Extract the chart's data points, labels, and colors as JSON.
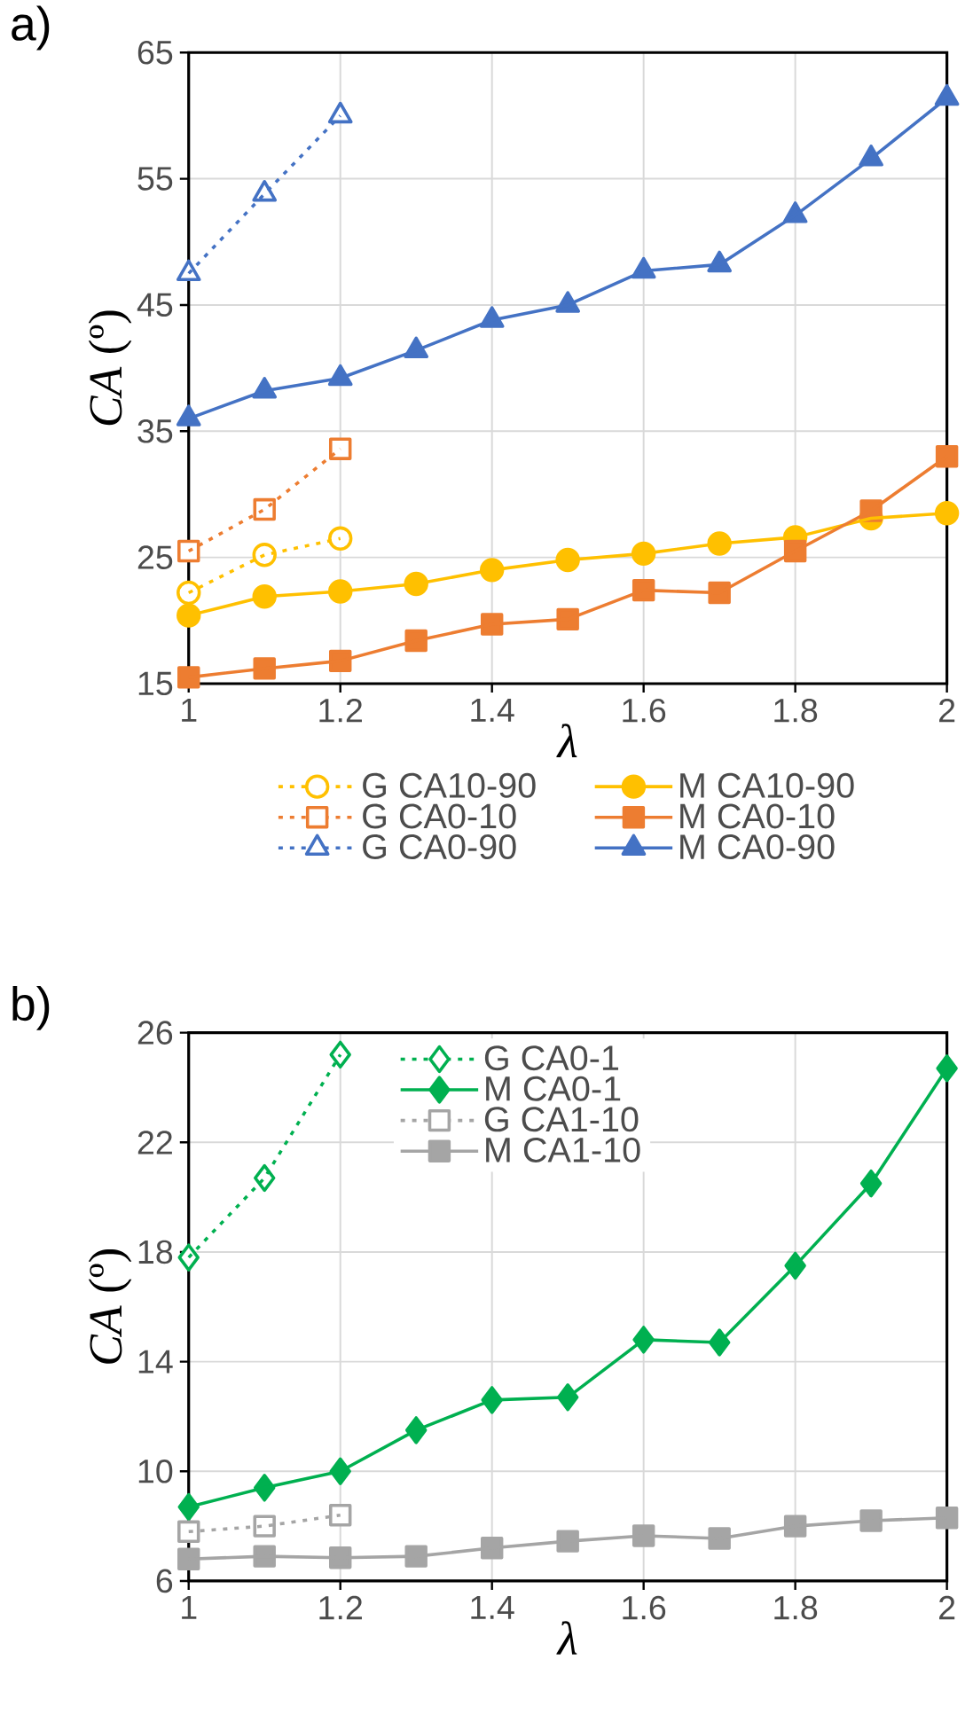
{
  "chart_data": [
    {
      "type": "line",
      "title": "a)",
      "xlabel": "λ",
      "ylabel": "*CA* (º)",
      "x": [
        1,
        1.1,
        1.2,
        1.3,
        1.4,
        1.5,
        1.6,
        1.7,
        1.8,
        1.9,
        2
      ],
      "xlim": [
        1,
        2
      ],
      "xticks": [
        1,
        1.2,
        1.4,
        1.6,
        1.8,
        2
      ],
      "ylim": [
        15,
        65
      ],
      "yticks": [
        15,
        25,
        35,
        45,
        55,
        65
      ],
      "grid": true,
      "legend": "bottom",
      "series": [
        {
          "name": "G CA10-90",
          "color": "#ffc000",
          "marker": "circle",
          "line_style": "dotted",
          "values": [
            22.2,
            25.2,
            26.5,
            null,
            null,
            null,
            null,
            null,
            null,
            null,
            null
          ]
        },
        {
          "name": "M CA10-90",
          "color": "#ffc000",
          "marker": "circle",
          "line_style": "solid",
          "values": [
            20.4,
            21.9,
            22.3,
            22.9,
            24.0,
            24.8,
            25.3,
            26.1,
            26.6,
            28.1,
            28.5
          ]
        },
        {
          "name": "G CA0-10",
          "color": "#ed7d31",
          "marker": "square",
          "line_style": "dotted",
          "values": [
            25.5,
            28.8,
            33.6,
            null,
            null,
            null,
            null,
            null,
            null,
            null,
            null
          ]
        },
        {
          "name": "M CA0-10",
          "color": "#ed7d31",
          "marker": "square",
          "line_style": "solid",
          "values": [
            15.5,
            16.2,
            16.8,
            18.4,
            19.7,
            20.1,
            22.4,
            22.2,
            25.5,
            28.7,
            33.0
          ]
        },
        {
          "name": "G CA0-90",
          "color": "#4472c4",
          "marker": "triangle",
          "line_style": "dotted",
          "values": [
            47.5,
            53.8,
            60.0,
            null,
            null,
            null,
            null,
            null,
            null,
            null,
            null
          ]
        },
        {
          "name": "M CA0-90",
          "color": "#4472c4",
          "marker": "triangle",
          "line_style": "solid",
          "values": [
            36.0,
            38.2,
            39.2,
            41.4,
            43.8,
            45.0,
            47.7,
            48.2,
            52.1,
            56.6,
            61.4
          ]
        }
      ]
    },
    {
      "type": "line",
      "title": "b)",
      "xlabel": "λ",
      "ylabel": "*CA* (º)",
      "x": [
        1,
        1.1,
        1.2,
        1.3,
        1.4,
        1.5,
        1.6,
        1.7,
        1.8,
        1.9,
        2
      ],
      "xlim": [
        1,
        2
      ],
      "xticks": [
        1,
        1.2,
        1.4,
        1.6,
        1.8,
        2
      ],
      "ylim": [
        6,
        26
      ],
      "yticks": [
        6,
        10,
        14,
        18,
        22,
        26
      ],
      "grid": true,
      "legend": "top",
      "series": [
        {
          "name": "G CA0-1",
          "color": "#00b050",
          "marker": "diamond",
          "line_style": "dotted",
          "values": [
            17.8,
            20.7,
            25.2,
            null,
            null,
            null,
            null,
            null,
            null,
            null,
            null
          ]
        },
        {
          "name": "M CA0-1",
          "color": "#00b050",
          "marker": "diamond",
          "line_style": "solid",
          "values": [
            8.7,
            9.4,
            10.0,
            11.5,
            12.6,
            12.7,
            14.8,
            14.7,
            17.5,
            20.5,
            24.7
          ]
        },
        {
          "name": "G CA1-10",
          "color": "#a5a5a5",
          "marker": "square",
          "line_style": "dotted",
          "values": [
            7.8,
            8.0,
            8.4,
            null,
            null,
            null,
            null,
            null,
            null,
            null,
            null
          ]
        },
        {
          "name": "M CA1-10",
          "color": "#a5a5a5",
          "marker": "square",
          "line_style": "solid",
          "values": [
            6.8,
            6.9,
            6.85,
            6.9,
            7.2,
            7.45,
            7.65,
            7.55,
            8.0,
            8.2,
            8.3
          ]
        }
      ]
    }
  ]
}
